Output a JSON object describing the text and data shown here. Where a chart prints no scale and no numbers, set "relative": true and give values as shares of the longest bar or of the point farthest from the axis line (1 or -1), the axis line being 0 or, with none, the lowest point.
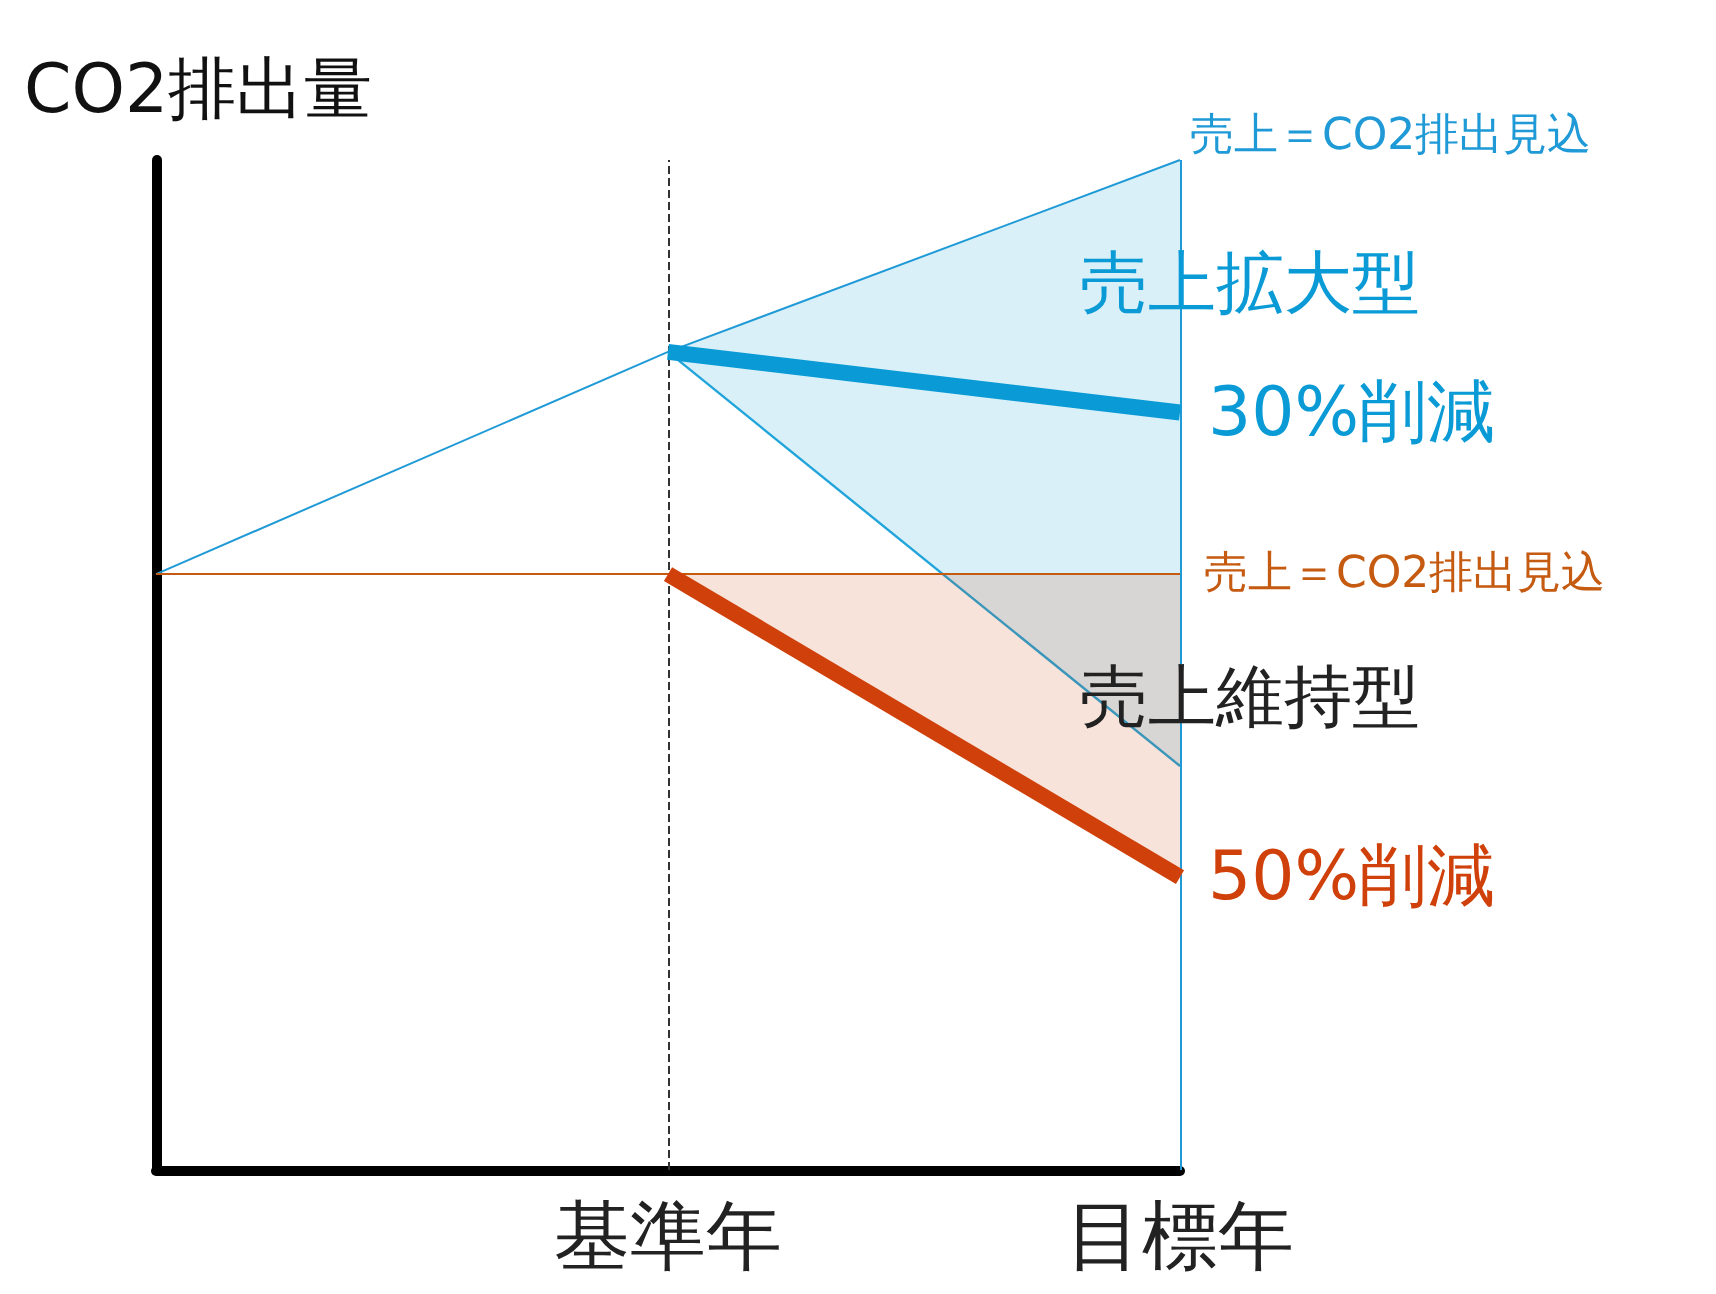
{
  "chart_data": {
    "type": "line",
    "relative": true,
    "ylabel": "CO2排出量",
    "categories": [
      null,
      "基準年",
      "目標年"
    ],
    "series": [
      {
        "color": "#1f9ad6",
        "values": [
          0.59,
          0.81,
          1
        ]
      },
      {
        "color": "#c55a11",
        "values": [
          0.59,
          0.59,
          0.59
        ]
      },
      {
        "name": "30%削減",
        "color": "#0a9bd6",
        "values": [
          null,
          0.81,
          0.75
        ],
        "upper": [
          null,
          0.81,
          1
        ],
        "lower": [
          null,
          0.81,
          0.4
        ]
      },
      {
        "name": "50%削減",
        "color": "#d0400a",
        "values": [
          null,
          0.59,
          0.29
        ],
        "upper": [
          null,
          0.59,
          0.59
        ],
        "lower": [
          null,
          0.59,
          0.29
        ]
      }
    ],
    "annotations": [
      {
        "text": "売上＝CO2排出見込",
        "x": "目標年",
        "y": 1
      },
      {
        "text": "売上＝CO2排出見込",
        "x": "目標年",
        "y": 0.59
      },
      "売上拡大型",
      "売上維持型"
    ],
    "ref_lines": [
      {
        "axis": "x",
        "value": "基準年",
        "color": "#333333",
        "line_style": "dashed"
      },
      {
        "axis": "x",
        "value": "目標年",
        "color": "#1f9ad6",
        "line_style": "solid"
      }
    ],
    "grid": false,
    "legend": false
  }
}
